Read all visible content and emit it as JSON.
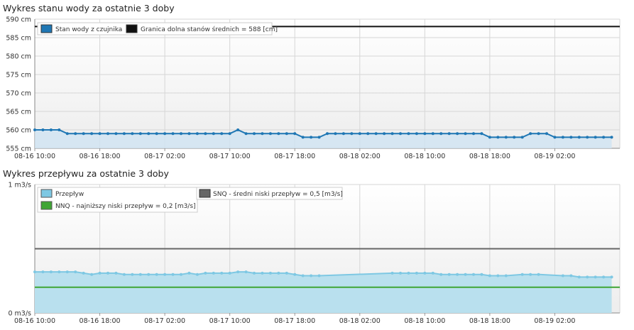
{
  "chart_data": [
    {
      "type": "line",
      "title": "Wykres stanu wody za ostatnie 3 doby",
      "ylim": [
        555,
        590
      ],
      "y_ticks": [
        555,
        560,
        565,
        570,
        575,
        580,
        585,
        590
      ],
      "y_tick_suffix": " cm",
      "x_tick_labels": [
        "08-16 10:00",
        "08-16 18:00",
        "08-17 02:00",
        "08-17 10:00",
        "08-17 18:00",
        "08-18 02:00",
        "08-18 10:00",
        "08-18 18:00",
        "08-19 02:00"
      ],
      "x_hours": [
        0,
        8,
        16,
        24,
        32,
        40,
        48,
        56,
        64
      ],
      "x_end_hours": 72,
      "grid": true,
      "legend_position": "top-left",
      "colors": {
        "series": "#1f77b4",
        "area": "#cfe4f2",
        "reference": "#111111"
      },
      "series": [
        {
          "name": "Stan wody z czujnika",
          "x_hours": [
            0,
            1,
            2,
            3,
            4,
            5,
            6,
            7,
            8,
            9,
            10,
            11,
            12,
            13,
            14,
            15,
            16,
            17,
            18,
            19,
            20,
            21,
            22,
            23,
            24,
            25,
            26,
            27,
            28,
            29,
            30,
            31,
            32,
            33,
            34,
            35,
            36,
            37,
            38,
            39,
            40,
            41,
            42,
            43,
            44,
            45,
            46,
            47,
            48,
            49,
            50,
            51,
            52,
            53,
            54,
            55,
            56,
            57,
            58,
            59,
            60,
            61,
            62,
            63,
            64,
            65,
            66,
            67,
            68,
            69,
            70,
            71
          ],
          "values": [
            560,
            560,
            560,
            560,
            559,
            559,
            559,
            559,
            559,
            559,
            559,
            559,
            559,
            559,
            559,
            559,
            559,
            559,
            559,
            559,
            559,
            559,
            559,
            559,
            559,
            560,
            559,
            559,
            559,
            559,
            559,
            559,
            559,
            558,
            558,
            558,
            559,
            559,
            559,
            559,
            559,
            559,
            559,
            559,
            559,
            559,
            559,
            559,
            559,
            559,
            559,
            559,
            559,
            559,
            559,
            559,
            558,
            558,
            558,
            558,
            558,
            559,
            559,
            559,
            558,
            558,
            558,
            558,
            558,
            558,
            558,
            558
          ]
        }
      ],
      "reference_lines": [
        {
          "name": "Granica dolna stanów średnich = 588 [cm]",
          "value": 588
        }
      ]
    },
    {
      "type": "area",
      "title": "Wykres przepływu za ostatnie 3 doby",
      "ylim": [
        0,
        1
      ],
      "y_tick_labels": [
        "0 m3/s",
        "1 m3/s"
      ],
      "y_ticks": [
        0,
        1
      ],
      "x_tick_labels": [
        "08-16 10:00",
        "08-16 18:00",
        "08-17 02:00",
        "08-17 10:00",
        "08-17 18:00",
        "08-18 02:00",
        "08-18 10:00",
        "08-18 18:00",
        "08-19 02:00"
      ],
      "x_hours": [
        0,
        8,
        16,
        24,
        32,
        40,
        48,
        56,
        64
      ],
      "x_end_hours": 72,
      "grid": true,
      "legend_position": "top",
      "colors": {
        "series": "#7ec8e3",
        "area": "#b9e0ee",
        "snq": "#666666",
        "nnq": "#3fa535"
      },
      "series": [
        {
          "name": "Przepływ",
          "x_hours": [
            0,
            1,
            2,
            3,
            4,
            5,
            6,
            7,
            8,
            9,
            10,
            11,
            12,
            13,
            14,
            15,
            16,
            17,
            18,
            19,
            20,
            21,
            22,
            23,
            24,
            25,
            26,
            27,
            28,
            29,
            30,
            31,
            32,
            33,
            34,
            35,
            44,
            45,
            46,
            47,
            48,
            49,
            50,
            51,
            52,
            53,
            54,
            55,
            56,
            57,
            58,
            60,
            61,
            62,
            65,
            66,
            67,
            68,
            69,
            70,
            71
          ],
          "values": [
            0.32,
            0.32,
            0.32,
            0.32,
            0.32,
            0.32,
            0.31,
            0.3,
            0.31,
            0.31,
            0.31,
            0.3,
            0.3,
            0.3,
            0.3,
            0.3,
            0.3,
            0.3,
            0.3,
            0.31,
            0.3,
            0.31,
            0.31,
            0.31,
            0.31,
            0.32,
            0.32,
            0.31,
            0.31,
            0.31,
            0.31,
            0.31,
            0.3,
            0.29,
            0.29,
            0.29,
            0.31,
            0.31,
            0.31,
            0.31,
            0.31,
            0.31,
            0.3,
            0.3,
            0.3,
            0.3,
            0.3,
            0.3,
            0.29,
            0.29,
            0.29,
            0.3,
            0.3,
            0.3,
            0.29,
            0.29,
            0.28,
            0.28,
            0.28,
            0.28,
            0.28
          ]
        }
      ],
      "reference_lines": [
        {
          "name": "SNQ - średni niski przepływ = 0,5 [m3/s]",
          "value": 0.5
        },
        {
          "name": "NNQ - najniższy niski przepływ = 0,2 [m3/s]",
          "value": 0.2
        }
      ]
    }
  ]
}
